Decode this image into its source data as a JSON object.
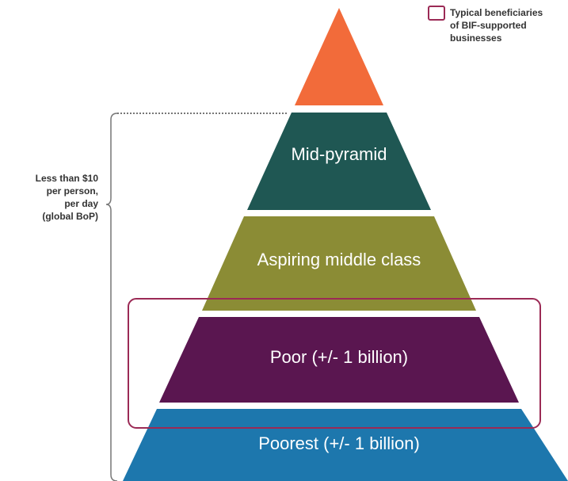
{
  "legend": {
    "lines": [
      "Typical beneficiaries",
      "of BIF-supported",
      "businesses"
    ]
  },
  "bracket": {
    "lines": [
      "Less than $10",
      "per person,",
      "per day",
      "(global BoP)"
    ]
  },
  "layers": [
    {
      "label": "Mid-pyramid"
    },
    {
      "label": "Aspiring middle class"
    },
    {
      "label": "Poor (+/- 1 billion)"
    },
    {
      "label": "Poorest (+/- 1 billion)"
    }
  ]
}
